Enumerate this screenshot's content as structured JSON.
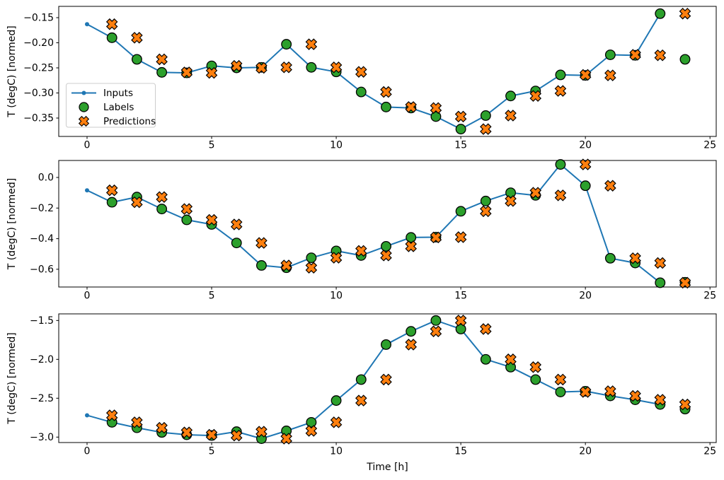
{
  "figure": {
    "background": "#ffffff",
    "xlabel": "Time [h]",
    "ylabel": "T (degC) [normed]",
    "colors": {
      "inputs_line": "#1f77b4",
      "labels_marker": "#2ca02c",
      "predictions_marker": "#ff7f0e",
      "marker_edge": "#000000",
      "spine": "#000000",
      "legend_border": "#cccccc",
      "legend_bg": "#ffffff"
    },
    "legend": {
      "items": [
        {
          "label": "Inputs",
          "marker": "line-dot"
        },
        {
          "label": "Labels",
          "marker": "circle"
        },
        {
          "label": "Predictions",
          "marker": "X"
        }
      ]
    }
  },
  "chart_data": [
    {
      "type": "line",
      "title": "",
      "xlabel": "",
      "ylabel": "T (degC) [normed]",
      "xlim": [
        -1.136,
        25.25
      ],
      "ylim": [
        -0.3866,
        -0.1275
      ],
      "xtick_values": [
        0,
        5,
        10,
        15,
        20,
        25
      ],
      "xtick_labels": [
        "0",
        "5",
        "10",
        "15",
        "20",
        "25"
      ],
      "ytick_values": [
        -0.15,
        -0.2,
        -0.25,
        -0.3,
        -0.35
      ],
      "ytick_labels": [
        "−0.15",
        "−0.20",
        "−0.25",
        "−0.30",
        "−0.35"
      ],
      "grid": false,
      "legend": true,
      "legend_position": "lower-left-inside",
      "series": [
        {
          "name": "Inputs",
          "type": "line",
          "marker": "dot",
          "x": [
            0,
            1,
            2,
            3,
            4,
            5,
            6,
            7,
            8,
            9,
            10,
            11,
            12,
            13,
            14,
            15,
            16,
            17,
            18,
            19,
            20,
            21,
            22,
            23
          ],
          "y": [
            -0.163,
            -0.19,
            -0.233,
            -0.259,
            -0.26,
            -0.246,
            -0.25,
            -0.249,
            -0.203,
            -0.249,
            -0.258,
            -0.298,
            -0.328,
            -0.33,
            -0.347,
            -0.372,
            -0.345,
            -0.306,
            -0.296,
            -0.264,
            -0.265,
            -0.224,
            -0.225,
            -0.142
          ]
        },
        {
          "name": "Labels",
          "type": "scatter",
          "marker": "circle",
          "x": [
            1,
            2,
            3,
            4,
            5,
            6,
            7,
            8,
            9,
            10,
            11,
            12,
            13,
            14,
            15,
            16,
            17,
            18,
            19,
            20,
            21,
            22,
            23,
            24
          ],
          "y": [
            -0.19,
            -0.233,
            -0.259,
            -0.26,
            -0.246,
            -0.25,
            -0.249,
            -0.203,
            -0.249,
            -0.258,
            -0.298,
            -0.328,
            -0.33,
            -0.347,
            -0.372,
            -0.345,
            -0.306,
            -0.296,
            -0.264,
            -0.265,
            -0.224,
            -0.225,
            -0.142,
            -0.233
          ]
        },
        {
          "name": "Predictions",
          "type": "scatter",
          "marker": "X",
          "x": [
            1,
            2,
            3,
            4,
            5,
            6,
            7,
            8,
            9,
            10,
            11,
            12,
            13,
            14,
            15,
            16,
            17,
            18,
            19,
            20,
            21,
            22,
            23,
            24
          ],
          "y": [
            -0.163,
            -0.19,
            -0.233,
            -0.259,
            -0.26,
            -0.246,
            -0.25,
            -0.249,
            -0.203,
            -0.249,
            -0.258,
            -0.298,
            -0.328,
            -0.33,
            -0.347,
            -0.372,
            -0.345,
            -0.306,
            -0.296,
            -0.264,
            -0.265,
            -0.224,
            -0.225,
            -0.142
          ]
        }
      ]
    },
    {
      "type": "line",
      "title": "",
      "xlabel": "",
      "ylabel": "T (degC) [normed]",
      "xlim": [
        -1.136,
        25.25
      ],
      "ylim": [
        -0.716,
        0.111
      ],
      "xtick_values": [
        0,
        5,
        10,
        15,
        20,
        25
      ],
      "xtick_labels": [
        "0",
        "5",
        "10",
        "15",
        "20",
        "25"
      ],
      "ytick_values": [
        0.0,
        -0.2,
        -0.4,
        -0.6
      ],
      "ytick_labels": [
        "0.0",
        "−0.2",
        "−0.4",
        "−0.6"
      ],
      "grid": false,
      "legend": false,
      "series": [
        {
          "name": "Inputs",
          "type": "line",
          "marker": "dot",
          "x": [
            0,
            1,
            2,
            3,
            4,
            5,
            6,
            7,
            8,
            9,
            10,
            11,
            12,
            13,
            14,
            15,
            16,
            17,
            18,
            19,
            20,
            21,
            22,
            23
          ],
          "y": [
            -0.084,
            -0.162,
            -0.128,
            -0.206,
            -0.277,
            -0.307,
            -0.428,
            -0.575,
            -0.59,
            -0.525,
            -0.48,
            -0.51,
            -0.45,
            -0.392,
            -0.39,
            -0.221,
            -0.154,
            -0.1,
            -0.117,
            0.085,
            -0.054,
            -0.528,
            -0.559,
            -0.688
          ]
        },
        {
          "name": "Labels",
          "type": "scatter",
          "marker": "circle",
          "x": [
            1,
            2,
            3,
            4,
            5,
            6,
            7,
            8,
            9,
            10,
            11,
            12,
            13,
            14,
            15,
            16,
            17,
            18,
            19,
            20,
            21,
            22,
            23,
            24
          ],
          "y": [
            -0.162,
            -0.128,
            -0.206,
            -0.277,
            -0.307,
            -0.428,
            -0.575,
            -0.59,
            -0.525,
            -0.48,
            -0.51,
            -0.45,
            -0.392,
            -0.39,
            -0.221,
            -0.154,
            -0.1,
            -0.117,
            0.085,
            -0.054,
            -0.528,
            -0.559,
            -0.688,
            -0.685
          ]
        },
        {
          "name": "Predictions",
          "type": "scatter",
          "marker": "X",
          "x": [
            1,
            2,
            3,
            4,
            5,
            6,
            7,
            8,
            9,
            10,
            11,
            12,
            13,
            14,
            15,
            16,
            17,
            18,
            19,
            20,
            21,
            22,
            23,
            24
          ],
          "y": [
            -0.084,
            -0.162,
            -0.128,
            -0.206,
            -0.277,
            -0.307,
            -0.428,
            -0.575,
            -0.59,
            -0.525,
            -0.48,
            -0.51,
            -0.45,
            -0.392,
            -0.39,
            -0.221,
            -0.154,
            -0.1,
            -0.117,
            0.085,
            -0.054,
            -0.528,
            -0.559,
            -0.688
          ]
        }
      ]
    },
    {
      "type": "line",
      "title": "",
      "xlabel": "Time [h]",
      "ylabel": "T (degC) [normed]",
      "xlim": [
        -1.136,
        25.25
      ],
      "ylim": [
        -3.07,
        -1.415
      ],
      "xtick_values": [
        0,
        5,
        10,
        15,
        20,
        25
      ],
      "xtick_labels": [
        "0",
        "5",
        "10",
        "15",
        "20",
        "25"
      ],
      "ytick_values": [
        -1.5,
        -2.0,
        -2.5,
        -3.0
      ],
      "ytick_labels": [
        "−1.5",
        "−2.0",
        "−2.5",
        "−3.0"
      ],
      "grid": false,
      "legend": false,
      "series": [
        {
          "name": "Inputs",
          "type": "line",
          "marker": "dot",
          "x": [
            0,
            1,
            2,
            3,
            4,
            5,
            6,
            7,
            8,
            9,
            10,
            11,
            12,
            13,
            14,
            15,
            16,
            17,
            18,
            19,
            20,
            21,
            22,
            23
          ],
          "y": [
            -2.72,
            -2.81,
            -2.88,
            -2.94,
            -2.97,
            -2.98,
            -2.93,
            -3.02,
            -2.92,
            -2.81,
            -2.53,
            -2.26,
            -1.81,
            -1.64,
            -1.5,
            -1.61,
            -2.0,
            -2.1,
            -2.26,
            -2.42,
            -2.41,
            -2.47,
            -2.52,
            -2.58
          ]
        },
        {
          "name": "Labels",
          "type": "scatter",
          "marker": "circle",
          "x": [
            1,
            2,
            3,
            4,
            5,
            6,
            7,
            8,
            9,
            10,
            11,
            12,
            13,
            14,
            15,
            16,
            17,
            18,
            19,
            20,
            21,
            22,
            23,
            24
          ],
          "y": [
            -2.81,
            -2.88,
            -2.94,
            -2.97,
            -2.98,
            -2.93,
            -3.02,
            -2.92,
            -2.81,
            -2.53,
            -2.26,
            -1.81,
            -1.64,
            -1.5,
            -1.61,
            -2.0,
            -2.1,
            -2.26,
            -2.42,
            -2.41,
            -2.47,
            -2.52,
            -2.58,
            -2.64
          ]
        },
        {
          "name": "Predictions",
          "type": "scatter",
          "marker": "X",
          "x": [
            1,
            2,
            3,
            4,
            5,
            6,
            7,
            8,
            9,
            10,
            11,
            12,
            13,
            14,
            15,
            16,
            17,
            18,
            19,
            20,
            21,
            22,
            23,
            24
          ],
          "y": [
            -2.72,
            -2.81,
            -2.88,
            -2.94,
            -2.97,
            -2.98,
            -2.93,
            -3.02,
            -2.92,
            -2.81,
            -2.53,
            -2.26,
            -1.81,
            -1.64,
            -1.5,
            -1.61,
            -2.0,
            -2.1,
            -2.26,
            -2.42,
            -2.41,
            -2.47,
            -2.52,
            -2.58
          ]
        }
      ]
    }
  ]
}
